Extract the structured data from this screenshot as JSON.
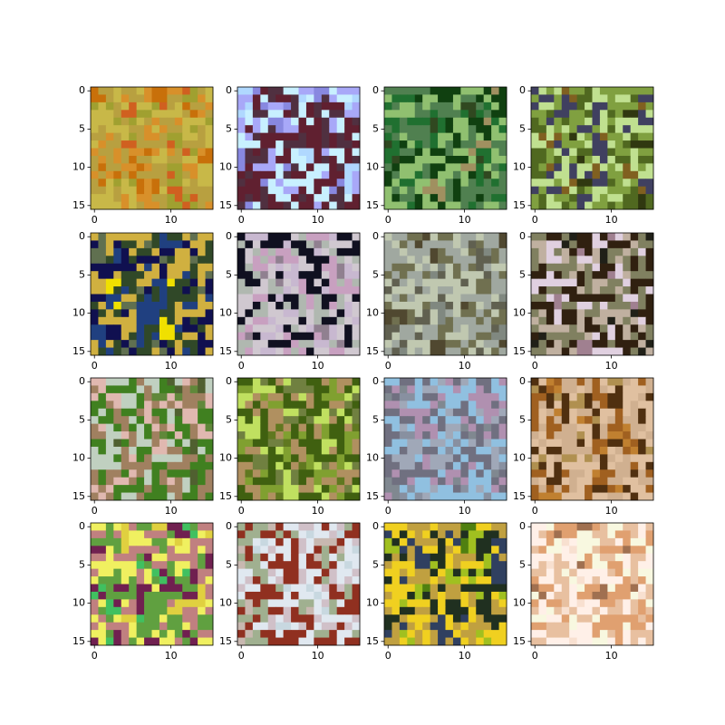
{
  "chart_data": [
    {
      "type": "image",
      "xlim": [
        -0.5,
        15.5
      ],
      "ylim": [
        15.5,
        -0.5
      ],
      "xticks": [
        0,
        10
      ],
      "yticks": [
        0,
        5,
        10,
        15
      ],
      "palette": [
        "#c8700a",
        "#d8902a",
        "#b8a040",
        "#c8b848",
        "#a0a030",
        "#d06020"
      ]
    },
    {
      "type": "image",
      "xlim": [
        -0.5,
        15.5
      ],
      "ylim": [
        15.5,
        -0.5
      ],
      "xticks": [
        0,
        10
      ],
      "yticks": [
        0,
        5,
        10,
        15
      ],
      "palette": [
        "#b0d8ff",
        "#a8a8f8",
        "#c8f0ff",
        "#602030",
        "#503040",
        "#8888e0"
      ]
    },
    {
      "type": "image",
      "xlim": [
        -0.5,
        15.5
      ],
      "ylim": [
        15.5,
        -0.5
      ],
      "xticks": [
        0,
        10
      ],
      "yticks": [
        0,
        5,
        10,
        15
      ],
      "palette": [
        "#304820",
        "#207030",
        "#508050",
        "#90c070",
        "#104010",
        "#a09060"
      ]
    },
    {
      "type": "image",
      "xlim": [
        -0.5,
        15.5
      ],
      "ylim": [
        15.5,
        -0.5
      ],
      "xticks": [
        0,
        10
      ],
      "yticks": [
        0,
        5,
        10,
        15
      ],
      "palette": [
        "#303810",
        "#506820",
        "#80a040",
        "#c0e090",
        "#404060",
        "#806020"
      ]
    },
    {
      "type": "image",
      "xlim": [
        -0.5,
        15.5
      ],
      "ylim": [
        15.5,
        -0.5
      ],
      "xticks": [
        0,
        10
      ],
      "yticks": [
        0,
        5,
        10,
        15
      ],
      "palette": [
        "#f0e000",
        "#204080",
        "#304828",
        "#d0b040",
        "#101050",
        "#607050"
      ]
    },
    {
      "type": "image",
      "xlim": [
        -0.5,
        15.5
      ],
      "ylim": [
        15.5,
        -0.5
      ],
      "xticks": [
        0,
        10
      ],
      "yticks": [
        0,
        5,
        10,
        15
      ],
      "palette": [
        "#c8b8d0",
        "#d0c8d0",
        "#101020",
        "#b0b8b0",
        "#c8a0c0",
        "#908090"
      ]
    },
    {
      "type": "image",
      "xlim": [
        -0.5,
        15.5
      ],
      "ylim": [
        15.5,
        -0.5
      ],
      "xticks": [
        0,
        10
      ],
      "yticks": [
        0,
        5,
        10,
        15
      ],
      "palette": [
        "#504830",
        "#707050",
        "#a0a8a0",
        "#c0c8b0",
        "#606050",
        "#808880"
      ]
    },
    {
      "type": "image",
      "xlim": [
        -0.5,
        15.5
      ],
      "ylim": [
        15.5,
        -0.5
      ],
      "xticks": [
        0,
        10
      ],
      "yticks": [
        0,
        5,
        10,
        15
      ],
      "palette": [
        "#a08090",
        "#e0d0e0",
        "#302010",
        "#808060",
        "#c0b0a0",
        "#202018"
      ]
    },
    {
      "type": "image",
      "xlim": [
        -0.5,
        15.5
      ],
      "ylim": [
        15.5,
        -0.5
      ],
      "xticks": [
        0,
        10
      ],
      "yticks": [
        0,
        5,
        10,
        15
      ],
      "palette": [
        "#60883a",
        "#e0b8b0",
        "#a08060",
        "#408020",
        "#c0d0c0",
        "#506030"
      ]
    },
    {
      "type": "image",
      "xlim": [
        -0.5,
        15.5
      ],
      "ylim": [
        15.5,
        -0.5
      ],
      "xticks": [
        0,
        10
      ],
      "yticks": [
        0,
        5,
        10,
        15
      ],
      "palette": [
        "#607820",
        "#80a030",
        "#b09060",
        "#406010",
        "#c0e060",
        "#708040"
      ]
    },
    {
      "type": "image",
      "xlim": [
        -0.5,
        15.5
      ],
      "ylim": [
        15.5,
        -0.5
      ],
      "xticks": [
        0,
        10
      ],
      "yticks": [
        0,
        5,
        10,
        15
      ],
      "palette": [
        "#8890a0",
        "#a0a8b8",
        "#90c0e0",
        "#707080",
        "#b090b0",
        "#808890"
      ]
    },
    {
      "type": "image",
      "xlim": [
        -0.5,
        15.5
      ],
      "ylim": [
        15.5,
        -0.5
      ],
      "xticks": [
        0,
        10
      ],
      "yticks": [
        0,
        5,
        10,
        15
      ],
      "palette": [
        "#c08030",
        "#a06020",
        "#d0b090",
        "#e0c0a0",
        "#503010",
        "#b09050"
      ]
    },
    {
      "type": "image",
      "xlim": [
        -0.5,
        15.5
      ],
      "ylim": [
        15.5,
        -0.5
      ],
      "xticks": [
        0,
        10
      ],
      "yticks": [
        0,
        5,
        10,
        15
      ],
      "palette": [
        "#e0d040",
        "#c08080",
        "#f0f060",
        "#60a040",
        "#702050",
        "#40c060"
      ]
    },
    {
      "type": "image",
      "xlim": [
        -0.5,
        15.5
      ],
      "ylim": [
        15.5,
        -0.5
      ],
      "xticks": [
        0,
        10
      ],
      "yticks": [
        0,
        5,
        10,
        15
      ],
      "palette": [
        "#c8d8e0",
        "#d0c0c8",
        "#e0e8f0",
        "#903020",
        "#a0b090",
        "#c8b8b0"
      ]
    },
    {
      "type": "image",
      "xlim": [
        -0.5,
        15.5
      ],
      "ylim": [
        15.5,
        -0.5
      ],
      "xticks": [
        0,
        10
      ],
      "yticks": [
        0,
        5,
        10,
        15
      ],
      "palette": [
        "#508010",
        "#a0c020",
        "#203020",
        "#f0d020",
        "#c0a040",
        "#304060"
      ]
    },
    {
      "type": "image",
      "xlim": [
        -0.5,
        15.5
      ],
      "ylim": [
        15.5,
        -0.5
      ],
      "xticks": [
        0,
        10
      ],
      "yticks": [
        0,
        5,
        10,
        15
      ],
      "palette": [
        "#f8e0d0",
        "#fff0e8",
        "#e8c0a0",
        "#e0a070",
        "#f8f8e0",
        "#a07050"
      ]
    }
  ]
}
